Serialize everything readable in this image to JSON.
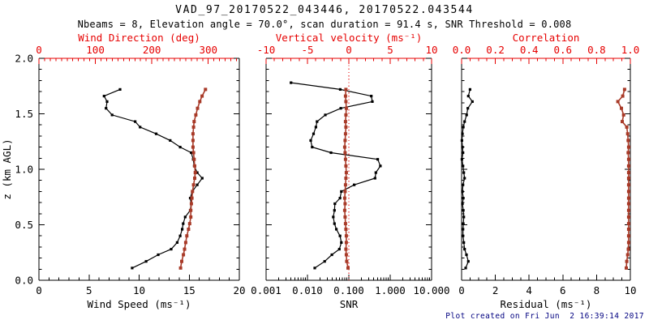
{
  "header": {
    "title": "VAD_97_20170522_043446, 20170522.043544",
    "subtitle": "Nbeams = 8, Elevation angle = 70.0°, scan duration = 91.4 s, SNR Threshold = 0.008"
  },
  "footer": {
    "created": "Plot created on Fri Jun  2 16:39:14 2017"
  },
  "colors": {
    "black": "#000000",
    "axis_red": "#e60000",
    "curve_red": "#a83a28",
    "timestamp_navy": "#000080",
    "background": "#ffffff"
  },
  "chart_data": [
    {
      "type": "line",
      "name": "wind-speed-direction-panel",
      "y_axis": {
        "label": "z (km AGL)",
        "lim": [
          0.0,
          2.0
        ],
        "major": [
          0.0,
          0.5,
          1.0,
          1.5,
          2.0
        ],
        "minor_step": 0.1,
        "show_labels": true,
        "tick_labels": [
          "0.0",
          "0.5",
          "1.0",
          "1.5",
          "2.0"
        ]
      },
      "bottom_axis": {
        "label": "Wind Speed (ms⁻¹)",
        "lim": [
          0,
          20
        ],
        "major": [
          0,
          5,
          10,
          15,
          20
        ],
        "tick_labels": [
          "0",
          "5",
          "10",
          "15",
          "20"
        ],
        "minor_step": 1
      },
      "top_axis": {
        "label": "Wind Direction (deg)",
        "lim": [
          0,
          355
        ],
        "major": [
          0,
          100,
          200,
          300
        ],
        "tick_labels": [
          "0",
          "100",
          "200",
          "300"
        ],
        "minor_step": 10
      },
      "series": [
        {
          "name": "wind-speed",
          "axis": "bottom",
          "color": "black",
          "z": [
            0.11,
            0.17,
            0.23,
            0.28,
            0.34,
            0.4,
            0.46,
            0.51,
            0.57,
            0.63,
            0.69,
            0.74,
            0.8,
            0.86,
            0.92,
            0.97,
            1.03,
            1.09,
            1.15,
            1.2,
            1.26,
            1.32,
            1.38,
            1.43,
            1.49,
            1.55,
            1.61,
            1.66,
            1.72
          ],
          "v": [
            9.3,
            10.7,
            11.9,
            13.2,
            13.8,
            14.1,
            14.3,
            14.4,
            14.6,
            15.1,
            15.2,
            15.1,
            15.3,
            15.8,
            16.3,
            15.8,
            15.5,
            15.4,
            15.2,
            14.1,
            13.1,
            11.7,
            10.1,
            9.6,
            7.3,
            6.7,
            6.8,
            6.5,
            8.1
          ]
        },
        {
          "name": "wind-direction",
          "axis": "top",
          "color": "red",
          "z": [
            0.11,
            0.17,
            0.23,
            0.28,
            0.34,
            0.4,
            0.46,
            0.51,
            0.57,
            0.63,
            0.69,
            0.74,
            0.8,
            0.86,
            0.92,
            0.97,
            1.03,
            1.09,
            1.15,
            1.2,
            1.26,
            1.32,
            1.38,
            1.43,
            1.49,
            1.55,
            1.61,
            1.66,
            1.72
          ],
          "v": [
            251,
            253,
            256,
            258,
            260,
            262,
            265,
            267,
            269,
            269,
            270,
            271,
            272,
            274,
            276,
            277,
            276,
            275,
            274,
            273,
            273,
            273,
            274,
            275,
            278,
            281,
            285,
            289,
            295
          ]
        }
      ]
    },
    {
      "type": "line",
      "name": "snr-vertical-velocity-panel",
      "y_axis": {
        "lim": [
          0.0,
          2.0
        ],
        "major": [
          0.0,
          0.5,
          1.0,
          1.5,
          2.0
        ],
        "minor_step": 0.1,
        "show_labels": false
      },
      "bottom_axis": {
        "label": "SNR",
        "scale": "log",
        "lim": [
          0.001,
          10
        ],
        "major": [
          0.001,
          0.01,
          0.1,
          1,
          10
        ],
        "tick_labels": [
          "0.001",
          "0.010",
          "0.100",
          "1.000",
          "10.000"
        ]
      },
      "top_axis": {
        "label": "Vertical velocity (ms⁻¹)",
        "lim": [
          -10,
          10
        ],
        "major": [
          -10,
          -5,
          0,
          5,
          10
        ],
        "tick_labels": [
          "-10",
          "-5",
          "0",
          "5",
          "10"
        ],
        "minor_step": 1
      },
      "refline": {
        "axis": "top",
        "v": 0
      },
      "series": [
        {
          "name": "snr",
          "axis": "bottom",
          "color": "black",
          "z": [
            0.11,
            0.17,
            0.23,
            0.28,
            0.34,
            0.4,
            0.46,
            0.51,
            0.57,
            0.63,
            0.69,
            0.74,
            0.8,
            0.86,
            0.92,
            0.97,
            1.03,
            1.09,
            1.15,
            1.2,
            1.26,
            1.32,
            1.38,
            1.43,
            1.49,
            1.55,
            1.61,
            1.66,
            1.72,
            1.78
          ],
          "v": [
            0.015,
            0.026,
            0.039,
            0.059,
            0.066,
            0.061,
            0.05,
            0.045,
            0.042,
            0.045,
            0.046,
            0.061,
            0.066,
            0.135,
            0.43,
            0.45,
            0.58,
            0.5,
            0.037,
            0.013,
            0.012,
            0.014,
            0.016,
            0.017,
            0.027,
            0.064,
            0.37,
            0.35,
            0.062,
            0.004
          ]
        },
        {
          "name": "vertical-velocity",
          "axis": "top",
          "color": "red",
          "z": [
            0.11,
            0.17,
            0.23,
            0.28,
            0.34,
            0.4,
            0.46,
            0.51,
            0.57,
            0.63,
            0.69,
            0.74,
            0.8,
            0.86,
            0.92,
            0.97,
            1.03,
            1.09,
            1.15,
            1.2,
            1.26,
            1.32,
            1.38,
            1.43,
            1.49,
            1.55,
            1.61,
            1.66,
            1.72
          ],
          "v": [
            -0.1,
            -0.25,
            -0.3,
            -0.35,
            -0.3,
            -0.3,
            -0.35,
            -0.4,
            -0.45,
            -0.5,
            -0.45,
            -0.5,
            -0.45,
            -0.4,
            -0.35,
            -0.3,
            -0.35,
            -0.4,
            -0.45,
            -0.5,
            -0.45,
            -0.4,
            -0.35,
            -0.4,
            -0.35,
            -0.3,
            -0.35,
            -0.4,
            -0.35
          ]
        }
      ]
    },
    {
      "type": "line",
      "name": "residual-correlation-panel",
      "y_axis": {
        "lim": [
          0.0,
          2.0
        ],
        "major": [
          0.0,
          0.5,
          1.0,
          1.5,
          2.0
        ],
        "minor_step": 0.1,
        "show_labels": false
      },
      "bottom_axis": {
        "label": "Residual (ms⁻¹)",
        "lim": [
          0,
          10
        ],
        "major": [
          0,
          2,
          4,
          6,
          8,
          10
        ],
        "tick_labels": [
          "0",
          "2",
          "4",
          "6",
          "8",
          "10"
        ],
        "minor_step": 0.5
      },
      "top_axis": {
        "label": "Correlation",
        "lim": [
          0.0,
          1.0
        ],
        "major": [
          0.0,
          0.2,
          0.4,
          0.6,
          0.8,
          1.0
        ],
        "tick_labels": [
          "0.0",
          "0.2",
          "0.4",
          "0.6",
          "0.8",
          "1.0"
        ],
        "minor_step": 0.05
      },
      "series": [
        {
          "name": "residual",
          "axis": "bottom",
          "color": "black",
          "z": [
            0.11,
            0.17,
            0.23,
            0.28,
            0.34,
            0.4,
            0.46,
            0.51,
            0.57,
            0.63,
            0.69,
            0.74,
            0.8,
            0.86,
            0.92,
            0.97,
            1.03,
            1.09,
            1.15,
            1.2,
            1.26,
            1.32,
            1.38,
            1.43,
            1.49,
            1.55,
            1.61,
            1.66,
            1.72
          ],
          "v": [
            0.24,
            0.4,
            0.29,
            0.18,
            0.13,
            0.08,
            0.08,
            0.1,
            0.13,
            0.1,
            0.05,
            0.1,
            0.05,
            0.08,
            0.18,
            0.13,
            0.08,
            0.02,
            0.08,
            0.05,
            0.02,
            0.05,
            0.1,
            0.18,
            0.3,
            0.37,
            0.64,
            0.4,
            0.5
          ]
        },
        {
          "name": "correlation",
          "axis": "top",
          "color": "red",
          "z": [
            0.11,
            0.17,
            0.23,
            0.28,
            0.34,
            0.4,
            0.46,
            0.51,
            0.57,
            0.63,
            0.69,
            0.74,
            0.8,
            0.86,
            0.92,
            0.97,
            1.03,
            1.09,
            1.15,
            1.2,
            1.26,
            1.32,
            1.38,
            1.43,
            1.49,
            1.55,
            1.61,
            1.66,
            1.72
          ],
          "v": [
            0.976,
            0.979,
            0.984,
            0.988,
            0.99,
            0.99,
            0.99,
            0.99,
            0.99,
            0.99,
            0.99,
            0.99,
            0.99,
            0.99,
            0.99,
            0.99,
            0.99,
            0.99,
            0.987,
            0.99,
            0.987,
            0.984,
            0.979,
            0.952,
            0.96,
            0.947,
            0.926,
            0.955,
            0.966
          ]
        }
      ]
    }
  ]
}
